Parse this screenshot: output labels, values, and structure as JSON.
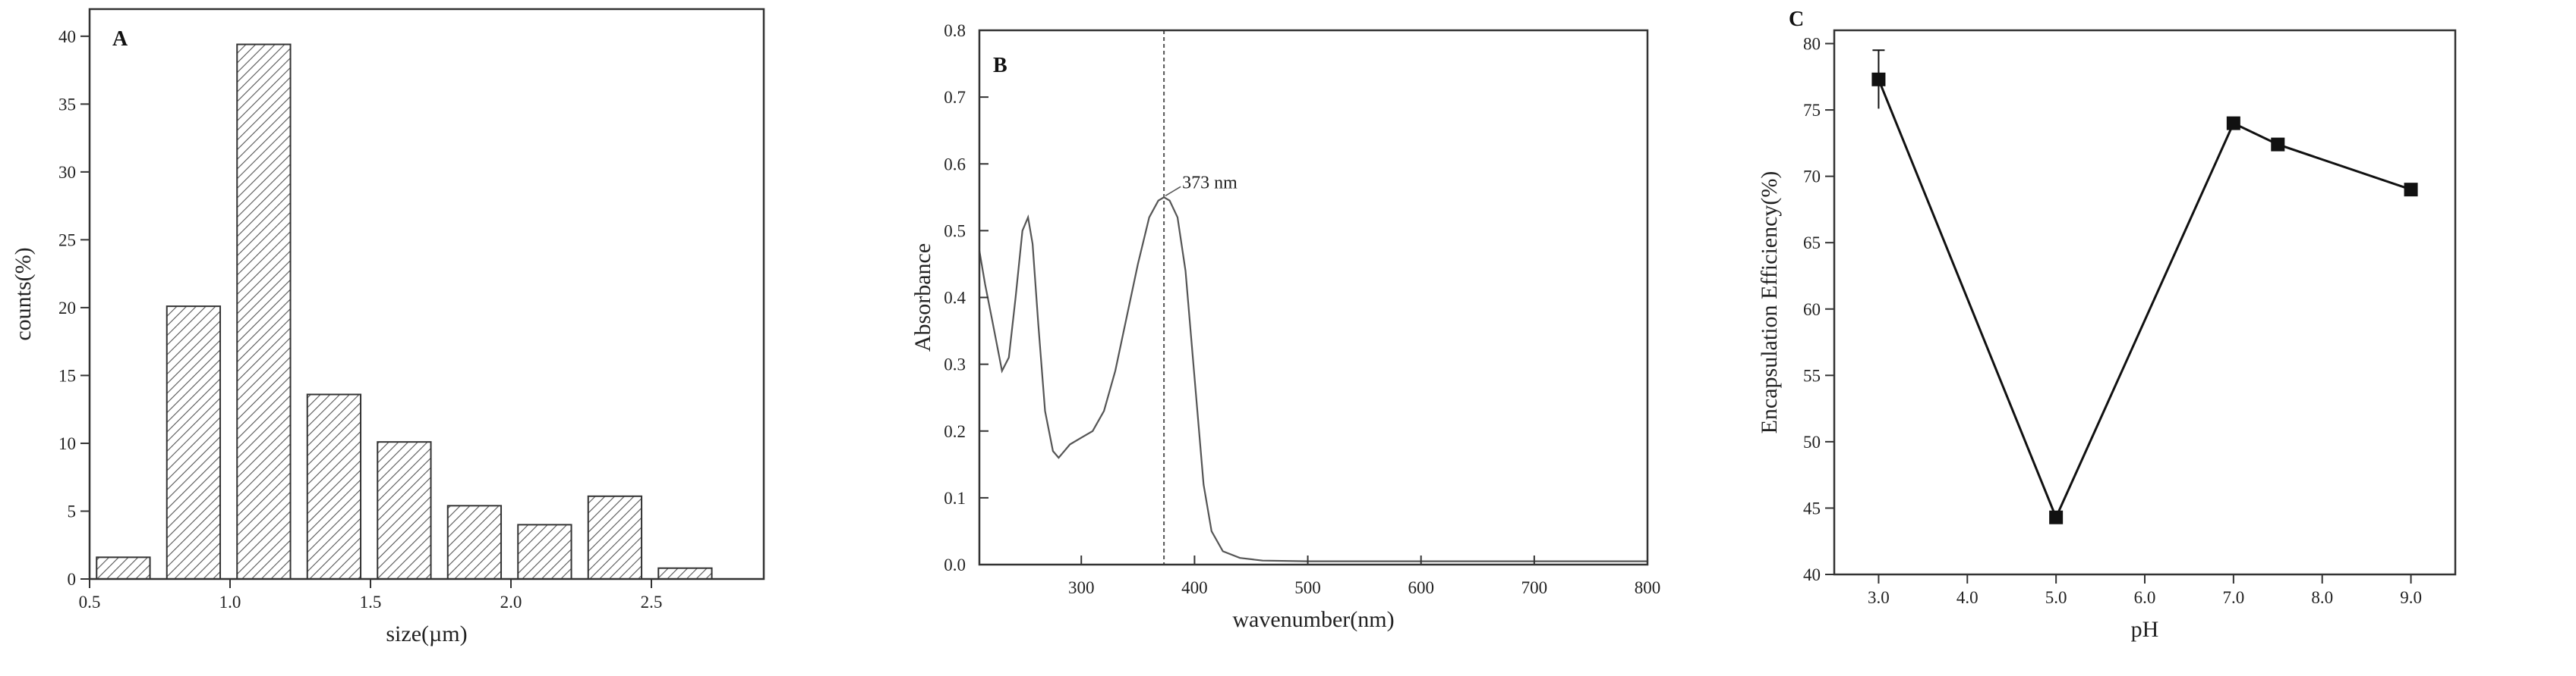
{
  "chart_data": [
    {
      "type": "bar",
      "panel_label": "A",
      "xlabel": "size(µm)",
      "ylabel": "counts(%)",
      "xlim": [
        0.5,
        2.9
      ],
      "ylim": [
        0,
        42
      ],
      "xticks": [
        0.5,
        1.0,
        1.5,
        2.0,
        2.5
      ],
      "xtick_labels": [
        "0.5",
        "1.0",
        "1.5",
        "2.0",
        "2.5"
      ],
      "yticks": [
        0,
        5,
        10,
        15,
        20,
        25,
        30,
        35,
        40
      ],
      "ytick_labels": [
        "0",
        "5",
        "10",
        "15",
        "20",
        "25",
        "30",
        "35",
        "40"
      ],
      "bar_width": 0.2,
      "bin_centers": [
        0.62,
        0.87,
        1.12,
        1.37,
        1.62,
        1.87,
        2.12,
        2.37,
        2.62
      ],
      "values": [
        1.6,
        20.1,
        39.4,
        13.6,
        10.1,
        5.4,
        4.0,
        6.1,
        0.8
      ],
      "fill": "hatched",
      "grid": false
    },
    {
      "type": "line",
      "panel_label": "B",
      "xlabel": "wavenumber(nm)",
      "ylabel": "Absorbance",
      "xlim": [
        210,
        800
      ],
      "ylim": [
        0,
        0.8
      ],
      "xticks": [
        300,
        400,
        500,
        600,
        700,
        800
      ],
      "xtick_labels": [
        "300",
        "400",
        "500",
        "600",
        "700",
        "800"
      ],
      "yticks": [
        0.0,
        0.1,
        0.2,
        0.3,
        0.4,
        0.5,
        0.6,
        0.7,
        0.8
      ],
      "ytick_labels": [
        "0.0",
        "0.1",
        "0.2",
        "0.3",
        "0.4",
        "0.5",
        "0.6",
        "0.7",
        "0.8"
      ],
      "series": [
        {
          "x": [
            210,
            215,
            222,
            230,
            236,
            242,
            248,
            253,
            257,
            262,
            268,
            275,
            280,
            285,
            290,
            300,
            310,
            320,
            330,
            340,
            350,
            360,
            368,
            373,
            378,
            385,
            392,
            400,
            408,
            415,
            425,
            440,
            460,
            500,
            550,
            600,
            650,
            700,
            750,
            800
          ],
          "y": [
            0.47,
            0.42,
            0.36,
            0.29,
            0.31,
            0.4,
            0.5,
            0.52,
            0.48,
            0.36,
            0.23,
            0.17,
            0.16,
            0.17,
            0.18,
            0.19,
            0.2,
            0.23,
            0.29,
            0.37,
            0.45,
            0.52,
            0.545,
            0.55,
            0.545,
            0.52,
            0.44,
            0.28,
            0.12,
            0.05,
            0.02,
            0.01,
            0.006,
            0.005,
            0.005,
            0.005,
            0.005,
            0.005,
            0.005,
            0.005
          ]
        }
      ],
      "reference_line_x": 373,
      "annotation": "373 nm",
      "grid": false
    },
    {
      "type": "line",
      "panel_label": "C",
      "xlabel": "pH",
      "ylabel": "Encapsulation Efficiency(%)",
      "xlim": [
        2.5,
        9.5
      ],
      "ylim": [
        40,
        81
      ],
      "xticks": [
        3.0,
        4.0,
        5.0,
        6.0,
        7.0,
        8.0,
        9.0
      ],
      "xtick_labels": [
        "3.0",
        "4.0",
        "5.0",
        "6.0",
        "7.0",
        "8.0",
        "9.0"
      ],
      "yticks": [
        40,
        45,
        50,
        55,
        60,
        65,
        70,
        75,
        80
      ],
      "ytick_labels": [
        "40",
        "45",
        "50",
        "55",
        "60",
        "65",
        "70",
        "75",
        "80"
      ],
      "series": [
        {
          "x": [
            3.0,
            5.0,
            7.0,
            7.5,
            9.0
          ],
          "y": [
            77.3,
            44.3,
            74.0,
            72.4,
            69.0
          ],
          "error": [
            2.2,
            0,
            0,
            0,
            0
          ],
          "marker": "square"
        }
      ],
      "grid": false
    }
  ]
}
